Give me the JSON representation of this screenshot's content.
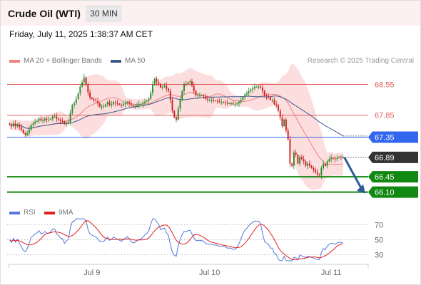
{
  "header": {
    "instrument": "Crude Oil (WTI)",
    "timeframe": "30 MIN",
    "datetime": "Friday, July 11, 2025 1:38:37 AM CET"
  },
  "legend": {
    "ma20_label": "MA 20 + Bollinger Bands",
    "ma20_color": "#f08080",
    "ma50_label": "MA 50",
    "ma50_color": "#3b5a8c",
    "credit": "Research © 2025 Trading Central"
  },
  "rsi_legend": {
    "rsi_label": "RSI",
    "rsi_color": "#5577dd",
    "ma9_label": "9MA",
    "ma9_color": "#dd2222"
  },
  "colors": {
    "resistance": "#e06060",
    "pivot": "#3366ee",
    "support": "#118811",
    "last_price": "#333333",
    "arrow": "#2e5d9a",
    "bollinger_fill": "#fcdcdc",
    "candle_up": "#2a8a2a",
    "candle_down": "#cc2222"
  },
  "chart_data": [
    {
      "type": "candlestick",
      "title": "Crude Oil (WTI)",
      "timeframe": "30 MIN",
      "ylim": [
        65.9,
        68.85
      ],
      "x_ticks": [
        "Jul 9",
        "Jul 10",
        "Jul 11"
      ],
      "levels": [
        {
          "label": "68.55",
          "value": 68.55,
          "kind": "resistance"
        },
        {
          "label": "67.85",
          "value": 67.85,
          "kind": "resistance"
        },
        {
          "label": "67.35",
          "value": 67.35,
          "kind": "pivot"
        },
        {
          "label": "66.89",
          "value": 66.89,
          "kind": "last"
        },
        {
          "label": "66.45",
          "value": 66.45,
          "kind": "support"
        },
        {
          "label": "66.10",
          "value": 66.1,
          "kind": "support"
        }
      ],
      "forecast": {
        "from": 66.89,
        "to": 66.1,
        "direction": "down"
      },
      "close": [
        67.64,
        67.6,
        67.66,
        67.6,
        67.64,
        67.58,
        67.52,
        67.44,
        67.4,
        67.44,
        67.52,
        67.63,
        67.66,
        67.7,
        67.72,
        67.77,
        67.73,
        67.73,
        67.77,
        67.75,
        67.75,
        67.77,
        67.82,
        67.82,
        67.77,
        67.75,
        67.72,
        67.71,
        67.65,
        67.68,
        67.7,
        67.9,
        68.08,
        68.12,
        68.22,
        68.35,
        68.5,
        68.6,
        68.71,
        68.55,
        68.37,
        68.25,
        68.22,
        68.19,
        68.17,
        68.12,
        68.05,
        68.05,
        68.05,
        68.1,
        68.15,
        68.08,
        68.1,
        68.15,
        68.13,
        68.11,
        68.09,
        68.07,
        68.1,
        68.12,
        68.15,
        68.12,
        68.08,
        68.05,
        68.06,
        68.08,
        68.1,
        68.1,
        68.13,
        68.16,
        68.18,
        68.22,
        68.36,
        68.55,
        68.68,
        68.6,
        68.56,
        68.48,
        68.5,
        68.52,
        68.45,
        68.4,
        68.2,
        67.95,
        67.8,
        67.75,
        68.0,
        68.2,
        68.4,
        68.56,
        68.55,
        68.6,
        68.62,
        68.52,
        68.4,
        68.3,
        68.3,
        68.3,
        68.3,
        68.28,
        68.22,
        68.2,
        68.2,
        68.2,
        68.18,
        68.18,
        68.17,
        68.15,
        68.15,
        68.15,
        68.14,
        68.12,
        68.12,
        68.12,
        68.1,
        68.1,
        68.12,
        68.15,
        68.2,
        68.26,
        68.32,
        68.35,
        68.4,
        68.44,
        68.47,
        68.5,
        68.5,
        68.5,
        68.48,
        68.4,
        68.3,
        68.28,
        68.26,
        68.2,
        68.2,
        68.1,
        68.08,
        67.95,
        67.8,
        67.6,
        67.75,
        67.5,
        67.3,
        66.75,
        66.7,
        67.0,
        66.95,
        66.75,
        66.9,
        66.85,
        66.8,
        66.7,
        66.75,
        66.7,
        66.65,
        66.6,
        66.55,
        66.5,
        66.48,
        66.65,
        66.75,
        66.7,
        66.8,
        66.85,
        66.88,
        66.87,
        66.85,
        66.88,
        66.9,
        66.89,
        66.89
      ],
      "rsi": {
        "ylim": [
          20,
          80
        ],
        "levels": [
          70,
          50,
          30
        ]
      }
    }
  ]
}
